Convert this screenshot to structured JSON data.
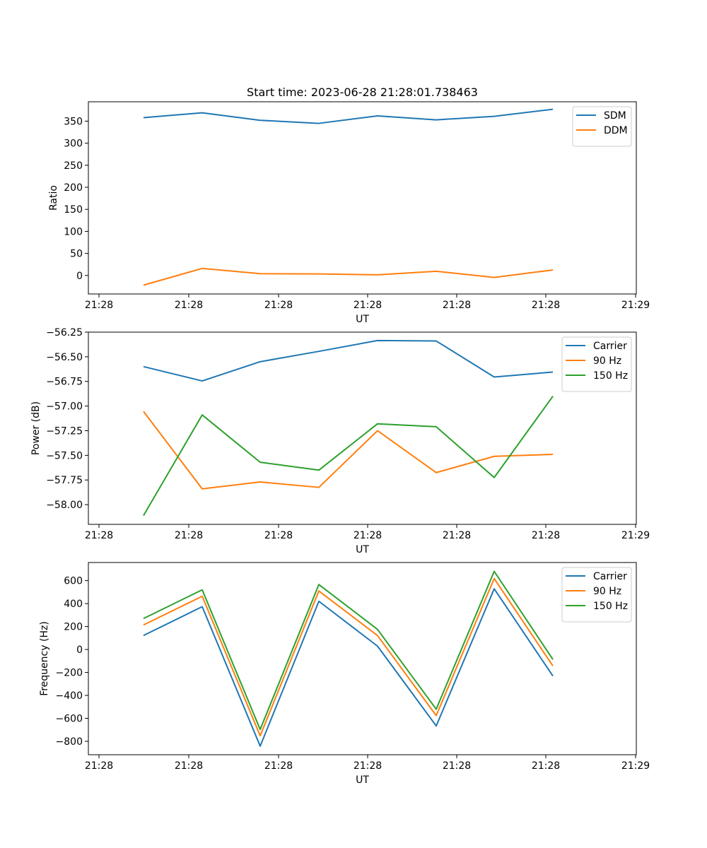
{
  "figure": {
    "title": "Start time: 2023-06-28 21:28:01.738463"
  },
  "chart_data": [
    {
      "type": "line",
      "xlabel": "UT",
      "ylabel": "Ratio",
      "x_ticks": [
        "21:28",
        "21:28",
        "21:28",
        "21:28",
        "21:28",
        "21:28",
        "21:29"
      ],
      "y_ticks": [
        0,
        50,
        100,
        150,
        200,
        250,
        300,
        350
      ],
      "ylim": [
        -42,
        394
      ],
      "legend_position": "upper right",
      "series": [
        {
          "name": "SDM",
          "color": "#1f77b4",
          "values": [
            358,
            369,
            352,
            345,
            362,
            353,
            361,
            377
          ]
        },
        {
          "name": "DDM",
          "color": "#ff7f0e",
          "values": [
            -22,
            16,
            4,
            3.5,
            1.5,
            9.5,
            -4.5,
            12.5
          ]
        }
      ]
    },
    {
      "type": "line",
      "xlabel": "UT",
      "ylabel": "Power (dB)",
      "x_ticks": [
        "21:28",
        "21:28",
        "21:28",
        "21:28",
        "21:28",
        "21:28",
        "21:29"
      ],
      "y_ticks": [
        -56.25,
        -56.5,
        -56.75,
        -57.0,
        -57.25,
        -57.5,
        -57.75,
        -58.0
      ],
      "y_tick_labels": [
        "−56.25",
        "−56.50",
        "−56.75",
        "−57.00",
        "−57.25",
        "−57.50",
        "−57.75",
        "−58.00"
      ],
      "ylim": [
        -58.2,
        -56.25
      ],
      "legend_position": "upper right",
      "series": [
        {
          "name": "Carrier",
          "color": "#1f77b4",
          "values": [
            -56.6,
            -56.745,
            -56.55,
            -56.445,
            -56.335,
            -56.34,
            -56.705,
            -56.655
          ]
        },
        {
          "name": "90 Hz",
          "color": "#ff7f0e",
          "values": [
            -57.055,
            -57.84,
            -57.77,
            -57.825,
            -57.25,
            -57.675,
            -57.51,
            -57.49
          ]
        },
        {
          "name": "150 Hz",
          "color": "#2ca02c",
          "values": [
            -58.11,
            -57.09,
            -57.57,
            -57.65,
            -57.18,
            -57.21,
            -57.725,
            -56.9
          ]
        }
      ]
    },
    {
      "type": "line",
      "xlabel": "UT",
      "ylabel": "Frequency (Hz)",
      "x_ticks": [
        "21:28",
        "21:28",
        "21:28",
        "21:28",
        "21:28",
        "21:28",
        "21:29"
      ],
      "y_ticks": [
        -800,
        -600,
        -400,
        -200,
        0,
        200,
        400,
        600
      ],
      "y_tick_labels": [
        "−800",
        "−600",
        "−400",
        "−200",
        "0",
        "200",
        "400",
        "600"
      ],
      "ylim": [
        -917,
        758
      ],
      "legend_position": "upper right",
      "series": [
        {
          "name": "Carrier",
          "color": "#1f77b4",
          "values": [
            122,
            373,
            -842,
            420,
            29,
            -666,
            529,
            -231
          ]
        },
        {
          "name": "90 Hz",
          "color": "#ff7f0e",
          "values": [
            214,
            464,
            -752,
            510,
            121,
            -576,
            618,
            -143
          ]
        },
        {
          "name": "150 Hz",
          "color": "#2ca02c",
          "values": [
            270,
            520,
            -697,
            566,
            175,
            -520,
            681,
            -87
          ]
        }
      ]
    }
  ]
}
